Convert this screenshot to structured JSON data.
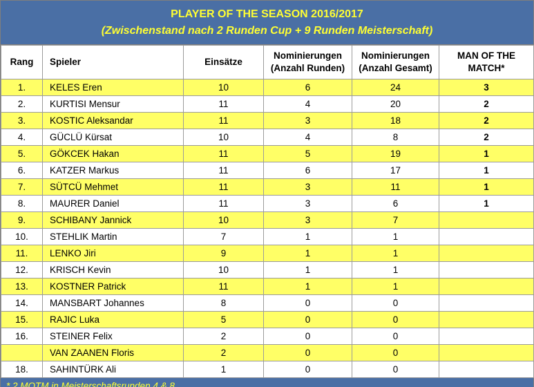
{
  "title": "PLAYER OF THE SEASON 2016/2017",
  "subtitle": "(Zwischenstand nach 2 Runden Cup + 9 Runden Meisterschaft)",
  "columns": {
    "rang": "Rang",
    "spieler": "Spieler",
    "einsaetze": "Einsätze",
    "nom_runden_1": "Nominierungen",
    "nom_runden_2": "(Anzahl Runden)",
    "nom_gesamt_1": "Nominierungen",
    "nom_gesamt_2": "(Anzahl Gesamt)",
    "motm_1": "MAN OF THE",
    "motm_2": "MATCH*"
  },
  "rows": [
    {
      "rang": "1.",
      "name": "KELES Eren",
      "einsaetze": "10",
      "runden": "6",
      "gesamt": "24",
      "motm": "3",
      "highlight": true
    },
    {
      "rang": "2.",
      "name": "KURTISI Mensur",
      "einsaetze": "11",
      "runden": "4",
      "gesamt": "20",
      "motm": "2",
      "highlight": false
    },
    {
      "rang": "3.",
      "name": "KOSTIC Aleksandar",
      "einsaetze": "11",
      "runden": "3",
      "gesamt": "18",
      "motm": "2",
      "highlight": true
    },
    {
      "rang": "4.",
      "name": "GÜCLÜ Kürsat",
      "einsaetze": "10",
      "runden": "4",
      "gesamt": "8",
      "motm": "2",
      "highlight": false
    },
    {
      "rang": "5.",
      "name": "GÖKCEK Hakan",
      "einsaetze": "11",
      "runden": "5",
      "gesamt": "19",
      "motm": "1",
      "highlight": true
    },
    {
      "rang": "6.",
      "name": "KATZER Markus",
      "einsaetze": "11",
      "runden": "6",
      "gesamt": "17",
      "motm": "1",
      "highlight": false
    },
    {
      "rang": "7.",
      "name": "SÜTCÜ Mehmet",
      "einsaetze": "11",
      "runden": "3",
      "gesamt": "11",
      "motm": "1",
      "highlight": true
    },
    {
      "rang": "8.",
      "name": "MAURER Daniel",
      "einsaetze": "11",
      "runden": "3",
      "gesamt": "6",
      "motm": "1",
      "highlight": false
    },
    {
      "rang": "9.",
      "name": "SCHIBANY Jannick",
      "einsaetze": "10",
      "runden": "3",
      "gesamt": "7",
      "motm": "",
      "highlight": true
    },
    {
      "rang": "10.",
      "name": "STEHLIK Martin",
      "einsaetze": "7",
      "runden": "1",
      "gesamt": "1",
      "motm": "",
      "highlight": false
    },
    {
      "rang": "11.",
      "name": "LENKO Jiri",
      "einsaetze": "9",
      "runden": "1",
      "gesamt": "1",
      "motm": "",
      "highlight": true
    },
    {
      "rang": "12.",
      "name": "KRISCH Kevin",
      "einsaetze": "10",
      "runden": "1",
      "gesamt": "1",
      "motm": "",
      "highlight": false
    },
    {
      "rang": "13.",
      "name": "KOSTNER Patrick",
      "einsaetze": "11",
      "runden": "1",
      "gesamt": "1",
      "motm": "",
      "highlight": true
    },
    {
      "rang": "14.",
      "name": "MANSBART Johannes",
      "einsaetze": "8",
      "runden": "0",
      "gesamt": "0",
      "motm": "",
      "highlight": false
    },
    {
      "rang": "15.",
      "name": "RAJIC Luka",
      "einsaetze": "5",
      "runden": "0",
      "gesamt": "0",
      "motm": "",
      "highlight": true
    },
    {
      "rang": "16.",
      "name": "STEINER Felix",
      "einsaetze": "2",
      "runden": "0",
      "gesamt": "0",
      "motm": "",
      "highlight": false
    },
    {
      "rang": "",
      "name": "VAN ZAANEN Floris",
      "einsaetze": "2",
      "runden": "0",
      "gesamt": "0",
      "motm": "",
      "highlight": true
    },
    {
      "rang": "18.",
      "name": "SAHINTÜRK Ali",
      "einsaetze": "1",
      "runden": "0",
      "gesamt": "0",
      "motm": "",
      "highlight": false
    }
  ],
  "footnote": "* 2 MOTM in Meisterschaftsrunden 4 & 8",
  "colors": {
    "header_bg": "#4a6fa5",
    "header_text": "#ffff33",
    "row_highlight": "#ffff66",
    "row_plain": "#ffffff"
  }
}
